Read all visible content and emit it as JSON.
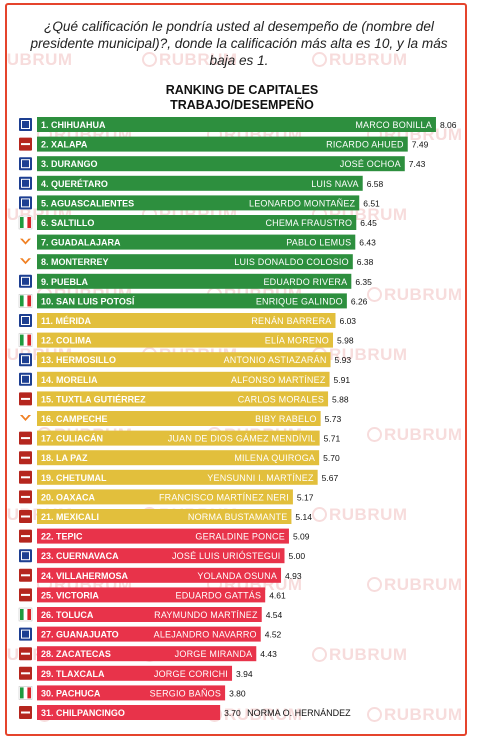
{
  "question": "¿Qué calificación le pondría usted al desempeño de (nombre del presidente municipal)?, donde la calificación más alta es 10, y la más baja es 1.",
  "watermark": "RUBRUM",
  "colors": {
    "green": "#2d8f3e",
    "yellow": "#e2bf3c",
    "red": "#e8334a",
    "frame": "#e5442c"
  },
  "chart_data": {
    "type": "bar",
    "orientation": "horizontal",
    "title": "RANKING DE CAPITALES TRABAJO/DESEMPEÑO",
    "title_lines": [
      "RANKING DE CAPITALES",
      "TRABAJO/DESEMPEÑO"
    ],
    "xlim": [
      0,
      10
    ],
    "rows": [
      {
        "rank": "1. CHIHUAHUA",
        "mayor": "MARCO BONILLA",
        "value": 8.06,
        "party": "PAN",
        "color": "green"
      },
      {
        "rank": "2. XALAPA",
        "mayor": "RICARDO AHUED",
        "value": 7.49,
        "party": "MORENA",
        "color": "green"
      },
      {
        "rank": "3. DURANGO",
        "mayor": "JOSÉ OCHOA",
        "value": 7.43,
        "party": "PAN",
        "color": "green"
      },
      {
        "rank": "4. QUERÉTARO",
        "mayor": "LUIS NAVA",
        "value": 6.58,
        "party": "PAN",
        "color": "green"
      },
      {
        "rank": "5. AGUASCALIENTES",
        "mayor": "LEONARDO MONTAÑEZ",
        "value": 6.51,
        "party": "PAN",
        "color": "green"
      },
      {
        "rank": "6. SALTILLO",
        "mayor": "CHEMA FRAUSTRO",
        "value": 6.45,
        "party": "PRI",
        "color": "green"
      },
      {
        "rank": "7. GUADALAJARA",
        "mayor": "PABLO LEMUS",
        "value": 6.43,
        "party": "MC",
        "color": "green"
      },
      {
        "rank": "8. MONTERREY",
        "mayor": "LUIS DONALDO COLOSIO",
        "value": 6.38,
        "party": "MC",
        "color": "green"
      },
      {
        "rank": "9. PUEBLA",
        "mayor": "EDUARDO RIVERA",
        "value": 6.35,
        "party": "PAN",
        "color": "green"
      },
      {
        "rank": "10. SAN LUIS POTOSÍ",
        "mayor": "ENRIQUE GALINDO",
        "value": 6.26,
        "party": "PRI",
        "color": "green"
      },
      {
        "rank": "11. MÉRIDA",
        "mayor": "RENÁN BARRERA",
        "value": 6.03,
        "party": "PAN",
        "color": "yellow"
      },
      {
        "rank": "12. COLIMA",
        "mayor": "ELÍA MORENO",
        "value": 5.98,
        "party": "PRI",
        "color": "yellow"
      },
      {
        "rank": "13. HERMOSILLO",
        "mayor": "ANTONIO ASTIAZARÁN",
        "value": 5.93,
        "party": "PAN",
        "color": "yellow"
      },
      {
        "rank": "14. MORELIA",
        "mayor": "ALFONSO MARTÍNEZ",
        "value": 5.91,
        "party": "PAN",
        "color": "yellow"
      },
      {
        "rank": "15. TUXTLA GUTIÉRREZ",
        "mayor": "CARLOS MORALES",
        "value": 5.88,
        "party": "MORENA",
        "color": "yellow"
      },
      {
        "rank": "16. CAMPECHE",
        "mayor": "BIBY RABELO",
        "value": 5.73,
        "party": "MC",
        "color": "yellow"
      },
      {
        "rank": "17. CULIACÁN",
        "mayor": "JUAN DE DIOS GÁMEZ MENDÍVIL",
        "value": 5.71,
        "party": "MORENA",
        "color": "yellow"
      },
      {
        "rank": "18. LA PAZ",
        "mayor": "MILENA QUIROGA",
        "value": 5.7,
        "party": "MORENA",
        "color": "yellow"
      },
      {
        "rank": "19. CHETUMAL",
        "mayor": "YENSUNNI I. MARTÍNEZ",
        "value": 5.67,
        "party": "MORENA",
        "color": "yellow"
      },
      {
        "rank": "20. OAXACA",
        "mayor": "FRANCISCO MARTÍNEZ NERI",
        "value": 5.17,
        "party": "MORENA",
        "color": "yellow"
      },
      {
        "rank": "21. MEXICALI",
        "mayor": "NORMA BUSTAMANTE",
        "value": 5.14,
        "party": "MORENA",
        "color": "yellow"
      },
      {
        "rank": "22. TEPIC",
        "mayor": "GERALDINE PONCE",
        "value": 5.09,
        "party": "MORENA",
        "color": "red"
      },
      {
        "rank": "23. CUERNAVACA",
        "mayor": "JOSÉ LUIS URIÓSTEGUI",
        "value": 5.0,
        "party": "PAN",
        "color": "red"
      },
      {
        "rank": "24. VILLAHERMOSA",
        "mayor": "YOLANDA OSUNA",
        "value": 4.93,
        "party": "MORENA",
        "color": "red"
      },
      {
        "rank": "25. VICTORIA",
        "mayor": "EDUARDO GATTÁS",
        "value": 4.61,
        "party": "MORENA",
        "color": "red"
      },
      {
        "rank": "26. TOLUCA",
        "mayor": "RAYMUNDO MARTÍNEZ",
        "value": 4.54,
        "party": "PRI",
        "color": "red"
      },
      {
        "rank": "27. GUANAJUATO",
        "mayor": "ALEJANDRO NAVARRO",
        "value": 4.52,
        "party": "PAN",
        "color": "red"
      },
      {
        "rank": "28. ZACATECAS",
        "mayor": "JORGE MIRANDA",
        "value": 4.43,
        "party": "MORENA",
        "color": "red"
      },
      {
        "rank": "29. TLAXCALA",
        "mayor": "JORGE CORICHI",
        "value": 3.94,
        "party": "MORENA",
        "color": "red"
      },
      {
        "rank": "30. PACHUCA",
        "mayor": "SERGIO BAÑOS",
        "value": 3.8,
        "party": "PRI",
        "color": "red"
      },
      {
        "rank": "31. CHILPANCINGO",
        "mayor": "NORMA O. HERNÁNDEZ",
        "value": 3.7,
        "party": "MORENA",
        "color": "red"
      }
    ]
  }
}
